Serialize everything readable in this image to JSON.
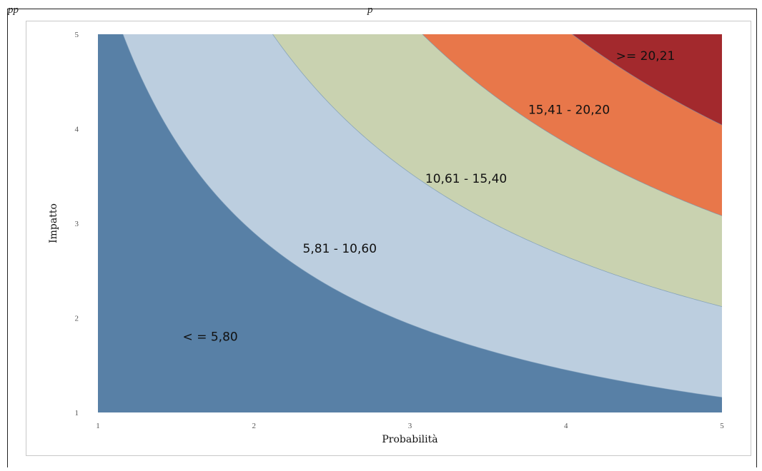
{
  "caption_fragments": [
    "pp",
    "p"
  ],
  "chart_data": {
    "type": "area",
    "title": "",
    "xlabel": "Probabilità",
    "ylabel": "Impatto",
    "xlim": [
      1,
      5
    ],
    "ylim": [
      1,
      5
    ],
    "x_ticks": [
      "1",
      "2",
      "3",
      "4",
      "5"
    ],
    "y_ticks": [
      "1",
      "2",
      "3",
      "4",
      "5"
    ],
    "grid": false,
    "legend": "none",
    "thresholds": [
      5.8,
      10.6,
      15.4,
      20.2
    ],
    "zones": [
      {
        "label": "< = 5,80",
        "color": "#5880a6",
        "label_at": [
          1.72,
          1.76
        ]
      },
      {
        "label": "5,81 - 10,60",
        "color": "#bccedf",
        "label_at": [
          2.55,
          2.69
        ]
      },
      {
        "label": "10,61 - 15,40",
        "color": "#c9d2b0",
        "label_at": [
          3.36,
          3.43
        ]
      },
      {
        "label": "15,41 - 20,20",
        "color": "#e8774a",
        "label_at": [
          4.02,
          4.16
        ]
      },
      {
        "label": ">= 20,21",
        "color": "#a3292d",
        "label_at": [
          4.51,
          4.73
        ]
      }
    ]
  }
}
